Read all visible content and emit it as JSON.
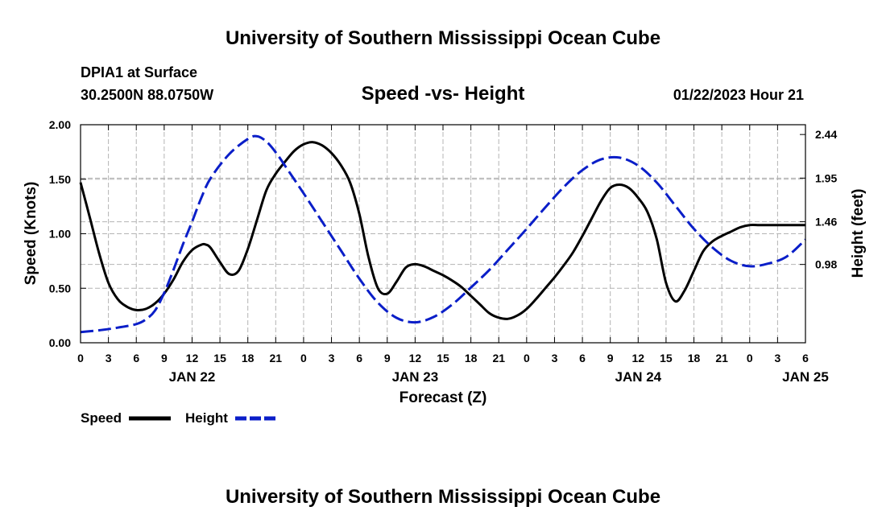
{
  "header": {
    "title": "University of Southern Mississippi Ocean Cube",
    "station": "DPIA1 at Surface",
    "coords": "30.2500N  88.0750W",
    "subtitle": "Speed -vs- Height",
    "datetime": "01/22/2023 Hour 21"
  },
  "footer": {
    "title": "University of Southern Mississippi Ocean Cube"
  },
  "colors": {
    "speed": "#000000",
    "height": "#0a1ec8",
    "grid": "#b4b4b4"
  },
  "chart_data": {
    "type": "line",
    "title": "Speed -vs- Height",
    "xlabel": "Forecast (Z)",
    "ylabel": "Speed (Knots)",
    "y2label": "Height (feet)",
    "xlim": [
      0,
      78
    ],
    "ylim": [
      0,
      2
    ],
    "y2lim": [
      0.1,
      2.55
    ],
    "x_ticks": [
      0,
      3,
      6,
      9,
      12,
      15,
      18,
      21,
      24,
      27,
      30,
      33,
      36,
      39,
      42,
      45,
      48,
      51,
      54,
      57,
      60,
      63,
      66,
      69,
      72,
      75,
      78
    ],
    "x_tick_labels": [
      "0",
      "3",
      "6",
      "9",
      "12",
      "15",
      "18",
      "21",
      "0",
      "3",
      "6",
      "9",
      "12",
      "15",
      "18",
      "21",
      "0",
      "3",
      "6",
      "9",
      "12",
      "15",
      "18",
      "21",
      "0",
      "3",
      "6"
    ],
    "y_ticks": [
      0,
      0.5,
      1,
      1.5,
      2
    ],
    "y_tick_labels": [
      "0.00",
      "0.50",
      "1.00",
      "1.50",
      "2.00"
    ],
    "y2_ticks": [
      0.98,
      1.46,
      1.95,
      2.44
    ],
    "y2_tick_labels": [
      "0.98",
      "1.46",
      "1.95",
      "2.44"
    ],
    "date_labels": [
      {
        "x": 12,
        "label": "JAN 22"
      },
      {
        "x": 36,
        "label": "JAN 23"
      },
      {
        "x": 60,
        "label": "JAN 24"
      },
      {
        "x": 78,
        "label": "JAN 25"
      }
    ],
    "legend": [
      {
        "name": "Speed",
        "style": "solid"
      },
      {
        "name": "Height",
        "style": "dashed"
      }
    ],
    "series": [
      {
        "name": "Speed",
        "axis": "left",
        "style": "solid",
        "x": [
          0,
          1,
          2,
          3,
          4,
          5,
          6,
          7,
          8,
          9,
          10,
          11,
          12,
          13,
          13.5,
          14,
          15,
          16,
          17,
          18,
          19,
          20,
          21,
          22,
          23,
          24,
          25,
          26,
          27,
          28,
          29,
          30,
          31,
          32,
          33,
          34,
          35,
          36,
          37,
          38,
          39,
          40,
          41,
          42,
          43,
          44,
          45,
          46,
          47,
          48,
          49,
          50,
          51,
          52,
          53,
          54,
          55,
          56,
          57,
          58,
          59,
          60,
          61,
          62,
          63,
          64,
          65,
          66,
          67,
          68,
          69,
          70,
          71,
          72,
          73,
          74,
          75,
          76,
          77,
          78
        ],
        "values": [
          1.47,
          1.15,
          0.82,
          0.55,
          0.4,
          0.33,
          0.3,
          0.31,
          0.36,
          0.45,
          0.58,
          0.74,
          0.85,
          0.9,
          0.9,
          0.87,
          0.74,
          0.63,
          0.66,
          0.86,
          1.13,
          1.4,
          1.55,
          1.66,
          1.76,
          1.82,
          1.84,
          1.81,
          1.74,
          1.63,
          1.47,
          1.18,
          0.78,
          0.5,
          0.45,
          0.56,
          0.69,
          0.72,
          0.7,
          0.66,
          0.62,
          0.57,
          0.51,
          0.43,
          0.35,
          0.27,
          0.23,
          0.22,
          0.25,
          0.31,
          0.4,
          0.5,
          0.6,
          0.71,
          0.83,
          0.98,
          1.14,
          1.3,
          1.42,
          1.45,
          1.42,
          1.33,
          1.2,
          0.95,
          0.55,
          0.38,
          0.48,
          0.66,
          0.84,
          0.93,
          0.98,
          1.02,
          1.06,
          1.08,
          1.08,
          1.08,
          1.08,
          1.08,
          1.08,
          1.08
        ]
      },
      {
        "name": "Height",
        "axis": "right",
        "style": "dashed",
        "x": [
          0,
          2,
          4,
          6,
          7,
          8,
          9,
          10,
          11,
          12,
          13,
          14,
          16,
          18,
          19,
          20,
          21,
          22,
          24,
          26,
          28,
          30,
          32,
          34,
          36,
          38,
          40,
          42,
          44,
          46,
          48,
          50,
          52,
          54,
          56,
          58,
          60,
          62,
          64,
          66,
          68,
          70,
          72,
          74,
          76,
          78
        ],
        "values": [
          0.22,
          0.24,
          0.27,
          0.31,
          0.36,
          0.46,
          0.66,
          0.92,
          1.2,
          1.46,
          1.73,
          1.95,
          2.22,
          2.39,
          2.42,
          2.36,
          2.24,
          2.09,
          1.78,
          1.46,
          1.14,
          0.82,
          0.55,
          0.38,
          0.33,
          0.39,
          0.53,
          0.72,
          0.92,
          1.15,
          1.38,
          1.62,
          1.85,
          2.04,
          2.16,
          2.18,
          2.09,
          1.9,
          1.64,
          1.38,
          1.17,
          1.02,
          0.96,
          0.99,
          1.07,
          1.26
        ]
      }
    ]
  }
}
